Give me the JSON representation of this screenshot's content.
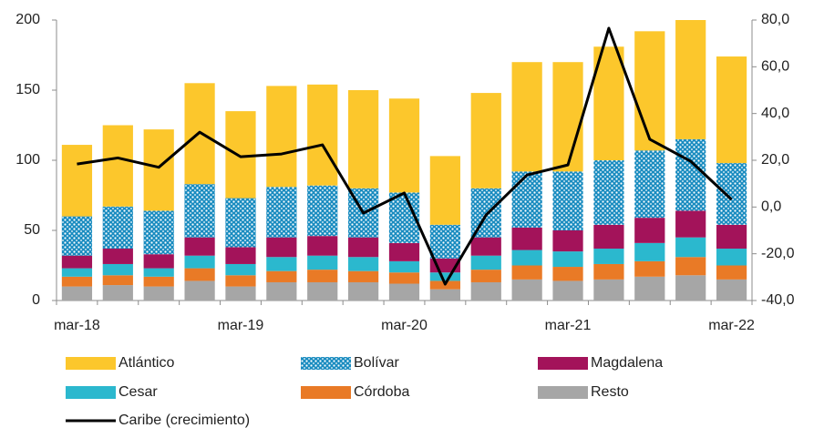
{
  "chart_data": {
    "type": "bar",
    "stacked": true,
    "categories": [
      "mar-18",
      null,
      null,
      null,
      "mar-19",
      null,
      null,
      null,
      "mar-20",
      null,
      null,
      null,
      "mar-21",
      null,
      null,
      null,
      "mar-22"
    ],
    "series": [
      {
        "name": "Atlántico",
        "color": "#FCC72C",
        "values": [
          51,
          58,
          58,
          72,
          62,
          72,
          72,
          70,
          67,
          49,
          68,
          78,
          78,
          81,
          85,
          85,
          76
        ]
      },
      {
        "name": "Bolívar",
        "color": "#1A8CC0",
        "pattern": "dots",
        "values": [
          28,
          30,
          31,
          38,
          35,
          36,
          36,
          35,
          36,
          24,
          35,
          40,
          42,
          46,
          48,
          51,
          44
        ]
      },
      {
        "name": "Magdalena",
        "color": "#A3135A",
        "values": [
          9,
          11,
          10,
          13,
          12,
          14,
          14,
          14,
          13,
          10,
          13,
          16,
          15,
          17,
          18,
          19,
          17
        ]
      },
      {
        "name": "Cesar",
        "color": "#2BB8CE",
        "values": [
          6,
          8,
          6,
          9,
          8,
          10,
          10,
          10,
          8,
          6,
          10,
          11,
          11,
          11,
          13,
          14,
          12
        ]
      },
      {
        "name": "Córdoba",
        "color": "#E97A26",
        "values": [
          7,
          7,
          7,
          9,
          8,
          8,
          9,
          8,
          8,
          6,
          9,
          10,
          10,
          11,
          11,
          13,
          10
        ]
      },
      {
        "name": "Resto",
        "color": "#A6A6A6",
        "values": [
          10,
          11,
          10,
          14,
          10,
          13,
          13,
          13,
          12,
          8,
          13,
          15,
          14,
          15,
          17,
          18,
          15
        ]
      },
      {
        "name": "Caribe (crecimiento)",
        "color": "#000000",
        "type": "line",
        "axis": "y2",
        "values": [
          18.4,
          21,
          17,
          32,
          21.5,
          22.7,
          26.6,
          -2.6,
          6,
          -33,
          -3.4,
          13.7,
          18,
          76.5,
          29,
          19.6,
          3.2
        ]
      }
    ],
    "ylim": [
      0,
      200
    ],
    "yticks": [
      0,
      50,
      100,
      150,
      200
    ],
    "y2lim": [
      -40,
      80
    ],
    "y2ticks": [
      {
        "value": -40,
        "label": "-40,0"
      },
      {
        "value": -20,
        "label": "-20,0"
      },
      {
        "value": 0,
        "label": "0,0"
      },
      {
        "value": 20,
        "label": "20,0"
      },
      {
        "value": 40,
        "label": "40,0"
      },
      {
        "value": 60,
        "label": "60,0"
      },
      {
        "value": 80,
        "label": "80,0"
      }
    ],
    "grid": false
  }
}
